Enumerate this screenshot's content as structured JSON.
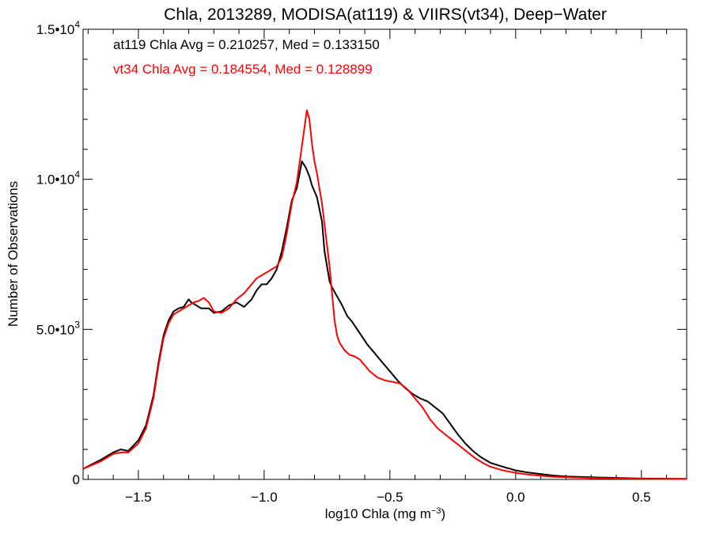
{
  "chart_data": {
    "type": "line",
    "title": "Chla, 2013289, MODISA(at119) & VIIRS(vt34), Deep−Water",
    "xlabel": "log10 Chla (mg m",
    "xlabel_sup": "−3",
    "xlabel_close": ")",
    "ylabel": "Number of Observations",
    "xlim": [
      -1.72,
      0.68
    ],
    "ylim": [
      0,
      15000
    ],
    "x_ticks": [
      {
        "value": -1.5,
        "label": "−1.5"
      },
      {
        "value": -1.0,
        "label": "−1.0"
      },
      {
        "value": -0.5,
        "label": "−0.5"
      },
      {
        "value": 0.0,
        "label": "0.0"
      },
      {
        "value": 0.5,
        "label": "0.5"
      }
    ],
    "y_ticks": [
      {
        "value": 0,
        "label": "0",
        "sup": ""
      },
      {
        "value": 5000,
        "label": "5.0•10",
        "sup": "3"
      },
      {
        "value": 10000,
        "label": "1.0•10",
        "sup": "4"
      },
      {
        "value": 15000,
        "label": "1.5•10",
        "sup": "4"
      }
    ],
    "annotations": [
      {
        "text": "at119 Chla Avg = 0.210257, Med = 0.133150",
        "color": "#000000"
      },
      {
        "text": "vt34 Chla Avg = 0.184554, Med = 0.128899",
        "color": "#ff0000"
      }
    ],
    "series": [
      {
        "color": "#000000",
        "x": [
          -1.72,
          -1.65,
          -1.6,
          -1.57,
          -1.54,
          -1.5,
          -1.47,
          -1.44,
          -1.42,
          -1.4,
          -1.38,
          -1.36,
          -1.34,
          -1.32,
          -1.3,
          -1.29,
          -1.27,
          -1.25,
          -1.22,
          -1.2,
          -1.17,
          -1.14,
          -1.11,
          -1.08,
          -1.05,
          -1.03,
          -1.01,
          -0.99,
          -0.97,
          -0.95,
          -0.93,
          -0.91,
          -0.89,
          -0.87,
          -0.85,
          -0.835,
          -0.82,
          -0.81,
          -0.8,
          -0.79,
          -0.78,
          -0.77,
          -0.76,
          -0.75,
          -0.74,
          -0.73,
          -0.71,
          -0.69,
          -0.67,
          -0.65,
          -0.63,
          -0.61,
          -0.59,
          -0.56,
          -0.53,
          -0.5,
          -0.47,
          -0.44,
          -0.41,
          -0.38,
          -0.35,
          -0.32,
          -0.29,
          -0.26,
          -0.23,
          -0.2,
          -0.17,
          -0.14,
          -0.1,
          -0.05,
          0.0,
          0.05,
          0.1,
          0.15,
          0.2,
          0.3,
          0.4,
          0.5,
          0.6,
          0.68
        ],
        "y": [
          350,
          650,
          900,
          1000,
          950,
          1300,
          1800,
          2800,
          3900,
          4800,
          5300,
          5600,
          5700,
          5750,
          6000,
          5900,
          5800,
          5700,
          5700,
          5550,
          5600,
          5800,
          5900,
          5750,
          6000,
          6300,
          6500,
          6500,
          6700,
          7000,
          7600,
          8400,
          9300,
          9700,
          10600,
          10400,
          10100,
          9800,
          9600,
          9400,
          9000,
          8600,
          7600,
          7100,
          6600,
          6400,
          6100,
          5800,
          5450,
          5250,
          5000,
          4750,
          4500,
          4200,
          3900,
          3600,
          3300,
          3050,
          2850,
          2700,
          2600,
          2400,
          2200,
          1850,
          1500,
          1200,
          950,
          750,
          550,
          420,
          300,
          230,
          180,
          130,
          100,
          70,
          50,
          30,
          25,
          20
        ]
      },
      {
        "color": "#ff0000",
        "x": [
          -1.72,
          -1.65,
          -1.6,
          -1.57,
          -1.54,
          -1.5,
          -1.47,
          -1.44,
          -1.42,
          -1.4,
          -1.38,
          -1.36,
          -1.34,
          -1.32,
          -1.3,
          -1.28,
          -1.26,
          -1.24,
          -1.22,
          -1.2,
          -1.17,
          -1.14,
          -1.11,
          -1.08,
          -1.05,
          -1.03,
          -1.01,
          -0.99,
          -0.97,
          -0.95,
          -0.93,
          -0.91,
          -0.89,
          -0.87,
          -0.85,
          -0.83,
          -0.82,
          -0.81,
          -0.8,
          -0.79,
          -0.78,
          -0.77,
          -0.76,
          -0.75,
          -0.74,
          -0.73,
          -0.72,
          -0.71,
          -0.7,
          -0.68,
          -0.66,
          -0.64,
          -0.62,
          -0.6,
          -0.58,
          -0.55,
          -0.52,
          -0.49,
          -0.46,
          -0.43,
          -0.4,
          -0.37,
          -0.34,
          -0.31,
          -0.28,
          -0.25,
          -0.22,
          -0.19,
          -0.16,
          -0.13,
          -0.1,
          -0.05,
          0.0,
          0.05,
          0.1,
          0.15,
          0.2,
          0.3,
          0.4,
          0.5,
          0.6,
          0.68
        ],
        "y": [
          350,
          600,
          850,
          900,
          900,
          1200,
          1700,
          2700,
          3800,
          4700,
          5200,
          5500,
          5600,
          5700,
          5800,
          5900,
          5950,
          6050,
          5900,
          5600,
          5550,
          5700,
          6000,
          6200,
          6500,
          6700,
          6800,
          6900,
          7000,
          7100,
          7400,
          8200,
          9200,
          9900,
          11100,
          12300,
          12000,
          11200,
          10600,
          10200,
          9700,
          9200,
          8500,
          7800,
          7100,
          6200,
          5300,
          4800,
          4550,
          4300,
          4150,
          4100,
          4000,
          3800,
          3600,
          3400,
          3300,
          3250,
          3200,
          3000,
          2700,
          2400,
          2000,
          1700,
          1500,
          1300,
          1100,
          900,
          700,
          550,
          420,
          300,
          220,
          160,
          120,
          90,
          70,
          45,
          30,
          20,
          15,
          12
        ]
      }
    ]
  }
}
